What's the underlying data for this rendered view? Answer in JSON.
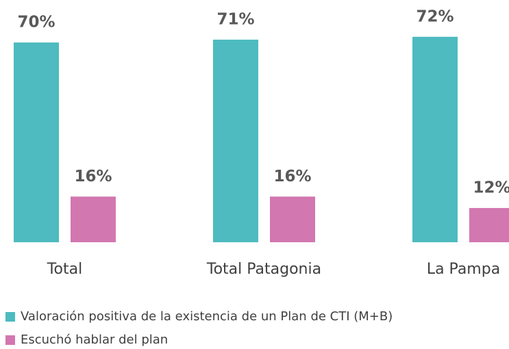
{
  "chart_data": {
    "type": "bar",
    "categories": [
      "Total",
      "Total Patagonia",
      "La Pampa"
    ],
    "series": [
      {
        "name": "Valoración positiva de la existencia de un Plan de CTI (M+B)",
        "color": "#4dbbbf",
        "values": [
          70,
          71,
          72
        ],
        "value_labels": [
          "70%",
          "71%",
          "72%"
        ]
      },
      {
        "name": "Escuchó hablar del plan",
        "color": "#d277b0",
        "values": [
          16,
          16,
          12
        ],
        "value_labels": [
          "16%",
          "16%",
          "12%"
        ]
      }
    ],
    "legend": "bottom-left"
  }
}
